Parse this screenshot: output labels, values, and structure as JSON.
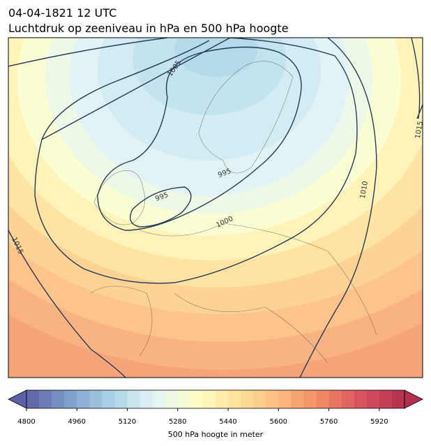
{
  "title": "04-04-1821 12 UTC",
  "subtitle": "Luchtdruk op zeeniveau in hPa en 500 hPa hoogte",
  "contour_labels": [
    "1005",
    "995",
    "1000",
    "995",
    "1010",
    "1015",
    "1015"
  ],
  "colorbar": {
    "label": "500 hPa hoogte in meter",
    "clim": [
      4800,
      6000
    ],
    "ticks": [
      4800,
      4960,
      5120,
      5280,
      5440,
      5600,
      5760,
      5920
    ],
    "colormap": [
      "#5d5fa8",
      "#7d9fcc",
      "#a9d2e6",
      "#e0f3f7",
      "#fffdc8",
      "#fee39c",
      "#fdbb7e",
      "#f08a66",
      "#d8515e",
      "#b2304f"
    ]
  }
}
